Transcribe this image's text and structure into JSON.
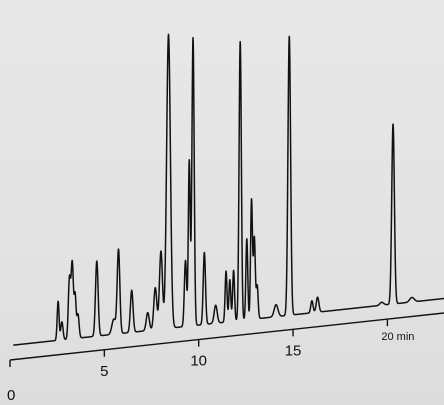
{
  "chart_data": {
    "type": "line",
    "title": "",
    "xlabel": "",
    "ylabel": "",
    "x_unit": "min",
    "xlim": [
      0,
      23
    ],
    "ylim": [
      0,
      100
    ],
    "ticks": [
      {
        "value": 0,
        "label": "0"
      },
      {
        "value": 5,
        "label": "5"
      },
      {
        "value": 10,
        "label": "10"
      },
      {
        "value": 15,
        "label": "15"
      },
      {
        "value": 20,
        "label": "20 min"
      }
    ],
    "baseline": 1.5,
    "peaks": [
      {
        "t": 2.55,
        "h": 13,
        "w": 0.05
      },
      {
        "t": 2.75,
        "h": 6,
        "w": 0.06
      },
      {
        "t": 3.15,
        "h": 20,
        "w": 0.06
      },
      {
        "t": 3.3,
        "h": 25,
        "w": 0.06
      },
      {
        "t": 3.45,
        "h": 14,
        "w": 0.05
      },
      {
        "t": 3.6,
        "h": 8,
        "w": 0.06
      },
      {
        "t": 4.6,
        "h": 25,
        "w": 0.07
      },
      {
        "t": 5.5,
        "h": 5,
        "w": 0.1
      },
      {
        "t": 5.75,
        "h": 28,
        "w": 0.07
      },
      {
        "t": 6.45,
        "h": 14,
        "w": 0.07
      },
      {
        "t": 7.3,
        "h": 6,
        "w": 0.08
      },
      {
        "t": 7.7,
        "h": 14,
        "w": 0.08
      },
      {
        "t": 8.0,
        "h": 26,
        "w": 0.08
      },
      {
        "t": 8.4,
        "h": 98,
        "w": 0.1
      },
      {
        "t": 9.3,
        "h": 22,
        "w": 0.06
      },
      {
        "t": 9.5,
        "h": 55,
        "w": 0.05
      },
      {
        "t": 9.7,
        "h": 96,
        "w": 0.06
      },
      {
        "t": 10.3,
        "h": 24,
        "w": 0.06
      },
      {
        "t": 10.9,
        "h": 6,
        "w": 0.08
      },
      {
        "t": 11.45,
        "h": 17,
        "w": 0.05
      },
      {
        "t": 11.65,
        "h": 14,
        "w": 0.05
      },
      {
        "t": 11.85,
        "h": 17,
        "w": 0.05
      },
      {
        "t": 12.2,
        "h": 93,
        "w": 0.06
      },
      {
        "t": 12.55,
        "h": 27,
        "w": 0.05
      },
      {
        "t": 12.8,
        "h": 40,
        "w": 0.05
      },
      {
        "t": 12.95,
        "h": 27,
        "w": 0.05
      },
      {
        "t": 13.1,
        "h": 11,
        "w": 0.05
      },
      {
        "t": 14.1,
        "h": 4,
        "w": 0.1
      },
      {
        "t": 14.8,
        "h": 93,
        "w": 0.07
      },
      {
        "t": 16.0,
        "h": 4,
        "w": 0.06
      },
      {
        "t": 16.3,
        "h": 5,
        "w": 0.07
      },
      {
        "t": 19.7,
        "h": 1,
        "w": 0.1
      },
      {
        "t": 20.3,
        "h": 60,
        "w": 0.07
      },
      {
        "t": 21.3,
        "h": 1.5,
        "w": 0.12
      }
    ]
  },
  "colors": {
    "trace": "#111111",
    "axis": "#111111",
    "background": "#e4e4e4"
  }
}
